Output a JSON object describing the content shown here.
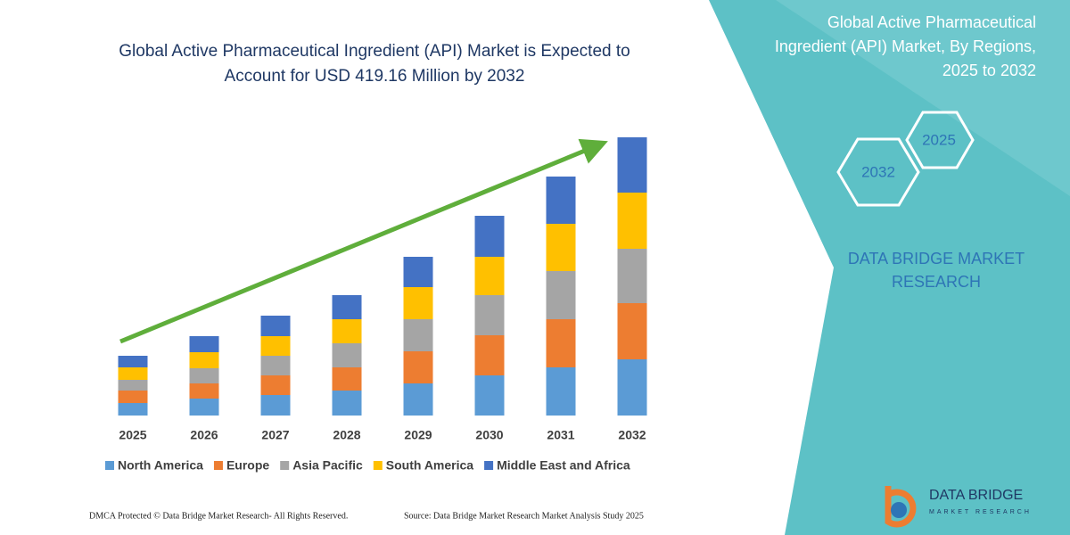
{
  "chart_data": {
    "type": "stacked-bar",
    "title": "Global Active Pharmaceutical Ingredient (API) Market is Expected to Account for USD 419.16 Million by 2032",
    "categories": [
      "2025",
      "2026",
      "2027",
      "2028",
      "2029",
      "2030",
      "2031",
      "2032"
    ],
    "series": [
      {
        "name": "North America",
        "color": "#5b9bd5",
        "values": [
          14,
          19,
          23,
          28,
          36,
          45,
          54,
          63
        ]
      },
      {
        "name": "Europe",
        "color": "#ed7d31",
        "values": [
          14,
          17,
          22,
          26,
          36,
          45,
          54,
          63
        ]
      },
      {
        "name": "Asia Pacific",
        "color": "#a5a5a5",
        "values": [
          12,
          17,
          22,
          27,
          36,
          45,
          54,
          61
        ]
      },
      {
        "name": "South America",
        "color": "#ffc000",
        "values": [
          14,
          18,
          22,
          27,
          36,
          43,
          53,
          63
        ]
      },
      {
        "name": "Middle East and Africa",
        "color": "#4472c4",
        "values": [
          13,
          18,
          23,
          27,
          34,
          46,
          53,
          62
        ]
      }
    ],
    "legend": "bottom"
  },
  "panel": {
    "title": "Global Active Pharmaceutical Ingredient (API) Market, By Regions, 2025 to 2032",
    "hexagons": [
      "2032",
      "2025"
    ],
    "brand": "DATA BRIDGE MARKET RESEARCH"
  },
  "footer": {
    "left": "DMCA Protected © Data Bridge Market Research-  All Rights Reserved.",
    "right": "Source: Data Bridge Market Research  Market Analysis Study 2025"
  },
  "logo": {
    "name": "DATA BRIDGE",
    "tagline": "MARKET RESEARCH"
  }
}
